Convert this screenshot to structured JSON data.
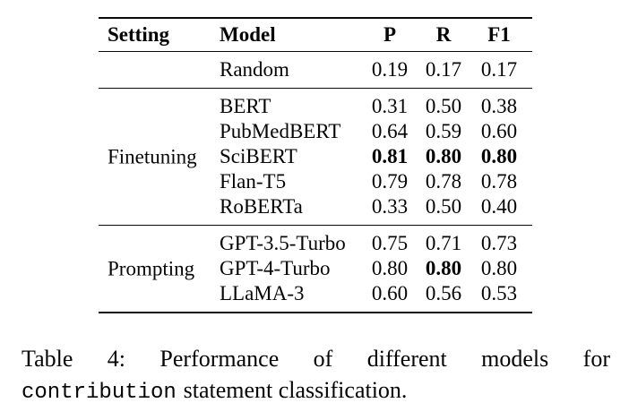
{
  "table": {
    "headers": {
      "setting": "Setting",
      "model": "Model",
      "p": "P",
      "r": "R",
      "f1": "F1"
    },
    "baseline": {
      "setting_label": "",
      "rows": [
        {
          "model": "Random",
          "p": "0.19",
          "r": "0.17",
          "f1": "0.17"
        }
      ]
    },
    "finetuning": {
      "setting_label": "Finetuning",
      "rows": [
        {
          "model": "BERT",
          "p": "0.31",
          "r": "0.50",
          "f1": "0.38"
        },
        {
          "model": "PubMedBERT",
          "p": "0.64",
          "r": "0.59",
          "f1": "0.60"
        },
        {
          "model": "SciBERT",
          "p": "0.81",
          "r": "0.80",
          "f1": "0.80",
          "bold_cells": [
            "p",
            "r",
            "f1"
          ]
        },
        {
          "model": "Flan-T5",
          "p": "0.79",
          "r": "0.78",
          "f1": "0.78"
        },
        {
          "model": "RoBERTa",
          "p": "0.33",
          "r": "0.50",
          "f1": "0.40"
        }
      ]
    },
    "prompting": {
      "setting_label": "Prompting",
      "rows": [
        {
          "model": "GPT-3.5-Turbo",
          "p": "0.75",
          "r": "0.71",
          "f1": "0.73"
        },
        {
          "model": "GPT-4-Turbo",
          "p": "0.80",
          "r": "0.80",
          "f1": "0.80",
          "bold_cells": [
            "r"
          ]
        },
        {
          "model": "LLaMA-3",
          "p": "0.60",
          "r": "0.56",
          "f1": "0.53"
        }
      ]
    }
  },
  "caption": {
    "line1": "Table 4: Performance of different models for",
    "code_word": "contribution",
    "line2_rest": "statement classification."
  },
  "colors": {
    "background": "#ffffff",
    "text": "#050505",
    "rule": "#0a0a0a"
  }
}
